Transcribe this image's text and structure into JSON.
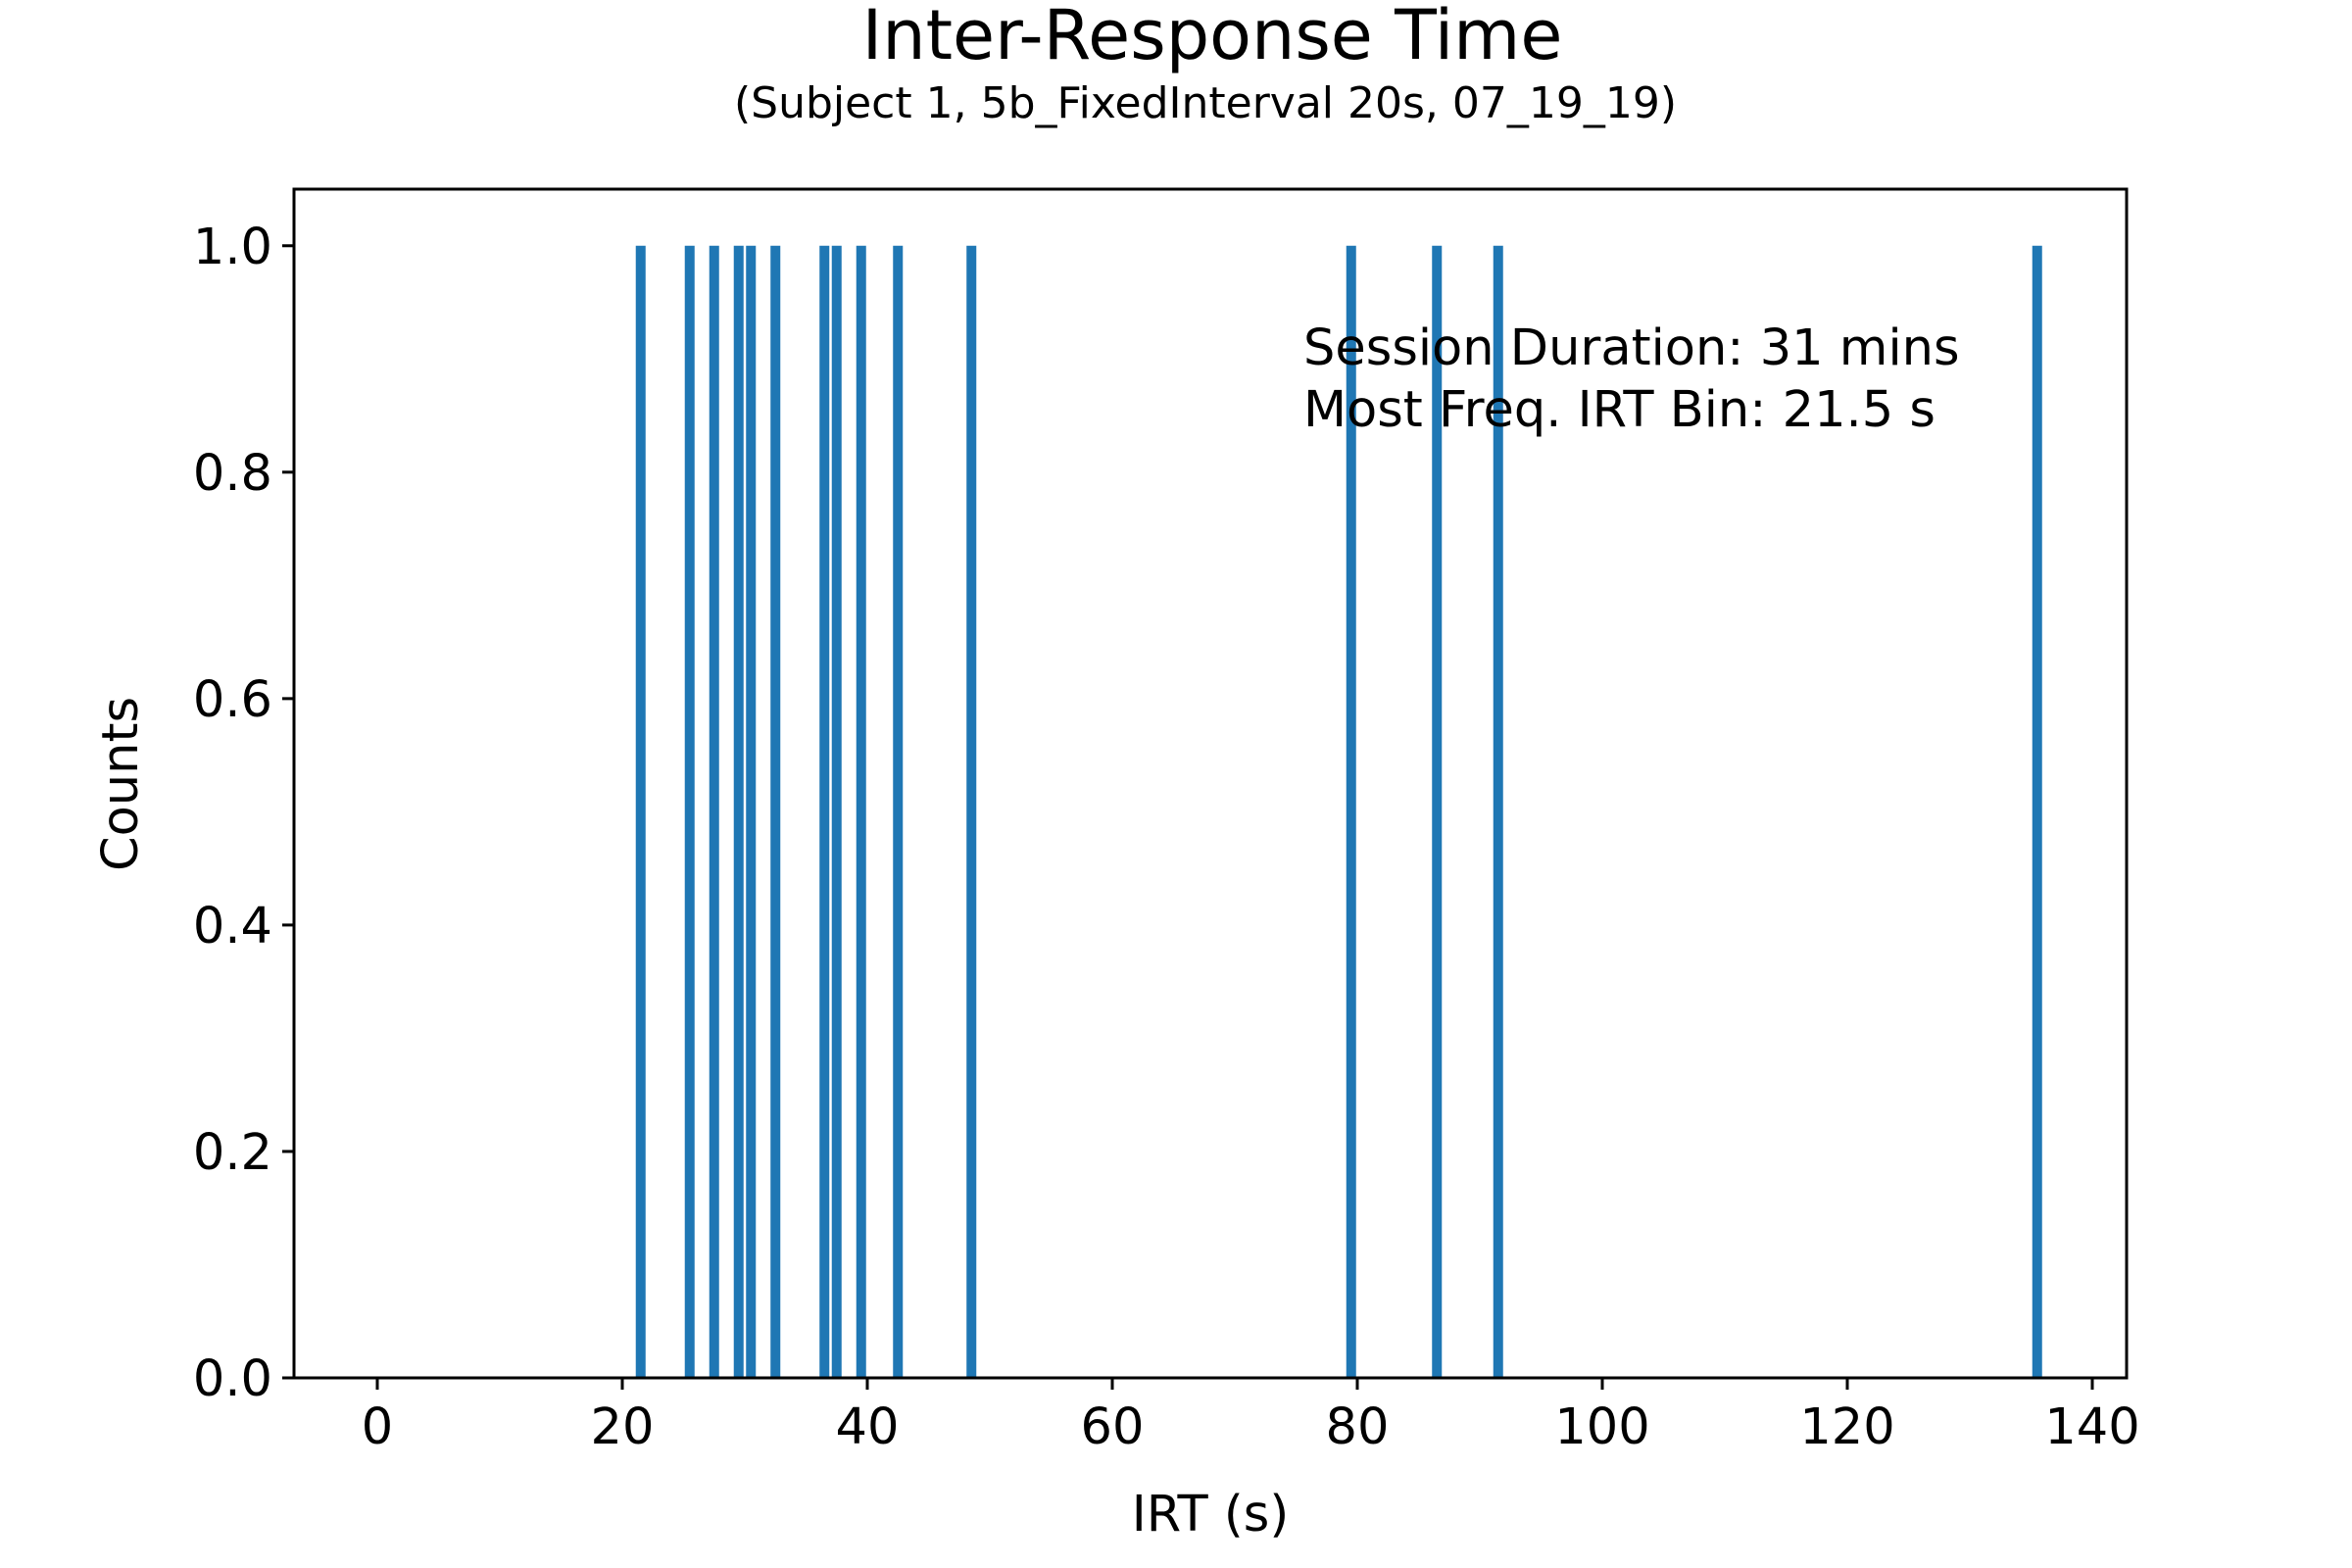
{
  "chart_data": {
    "type": "bar",
    "title": "Inter-Response Time",
    "subtitle": "(Subject 1, 5b_FixedInterval 20s, 07_19_19)",
    "xlabel": "IRT (s)",
    "ylabel": "Counts",
    "xlim": [
      -6.8,
      142.8
    ],
    "ylim": [
      0,
      1.05
    ],
    "bar_width": 0.8,
    "color": "#1f77b4",
    "xticks": [
      0,
      20,
      40,
      60,
      80,
      100,
      120,
      140
    ],
    "xtick_labels": [
      "0",
      "20",
      "40",
      "60",
      "80",
      "100",
      "120",
      "140"
    ],
    "yticks": [
      0,
      0.2,
      0.4,
      0.6,
      0.8,
      1.0
    ],
    "ytick_labels": [
      "0.0",
      "0.2",
      "0.4",
      "0.6",
      "0.8",
      "1.0"
    ],
    "bins": [
      21.5,
      25.5,
      27.5,
      29.5,
      30.5,
      32.5,
      36.5,
      37.5,
      39.5,
      42.5,
      48.5,
      79.5,
      86.5,
      91.5,
      135.5
    ],
    "values": [
      1,
      1,
      1,
      1,
      1,
      1,
      1,
      1,
      1,
      1,
      1,
      1,
      1,
      1,
      1
    ],
    "annotations": [
      "Session Duration: 31 mins",
      "Most Freq. IRT Bin: 21.5 s"
    ],
    "grid": false,
    "legend": "none"
  }
}
